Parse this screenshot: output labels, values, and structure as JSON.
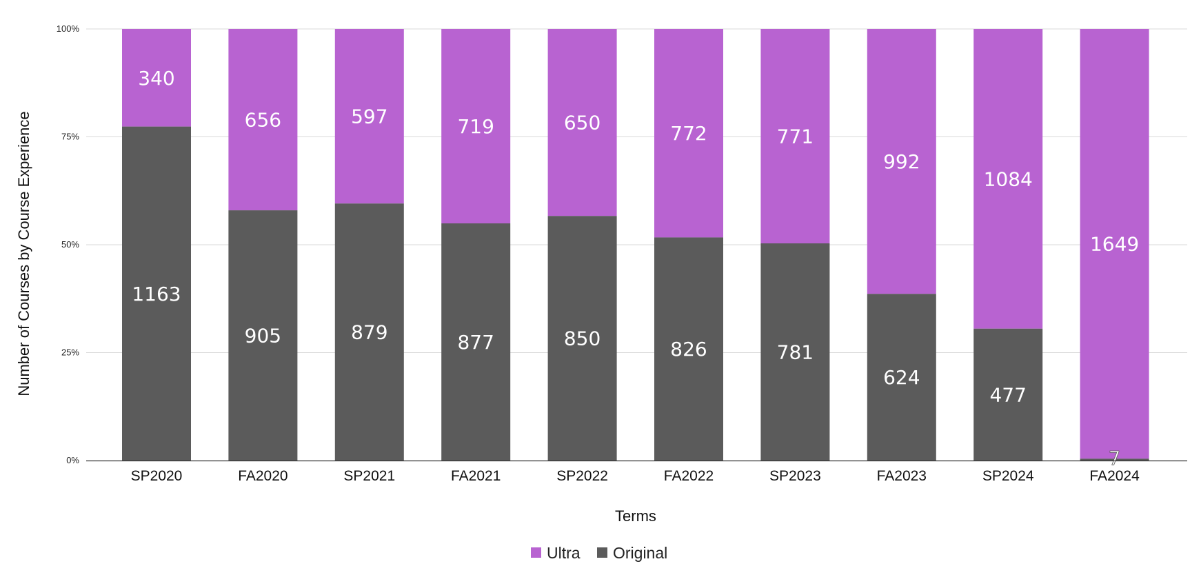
{
  "chart_data": {
    "type": "bar",
    "stacked": "percent",
    "categories": [
      "SP2020",
      "FA2020",
      "SP2021",
      "FA2021",
      "SP2022",
      "FA2022",
      "SP2023",
      "FA2023",
      "SP2024",
      "FA2024"
    ],
    "series": [
      {
        "name": "Original",
        "color": "#5b5b5b",
        "values": [
          1163,
          905,
          879,
          877,
          850,
          826,
          781,
          624,
          477,
          7
        ]
      },
      {
        "name": "Ultra",
        "color": "#b863d1",
        "values": [
          340,
          656,
          597,
          719,
          650,
          772,
          771,
          992,
          1084,
          1649
        ]
      }
    ],
    "xlabel": "Terms",
    "ylabel": "Number of Courses by Course Experience",
    "yticks": [
      "0%",
      "25%",
      "50%",
      "75%",
      "100%"
    ],
    "ylim": [
      0,
      100
    ],
    "grid": true,
    "legend": {
      "position": "bottom",
      "entries": [
        "Ultra",
        "Original"
      ]
    }
  }
}
